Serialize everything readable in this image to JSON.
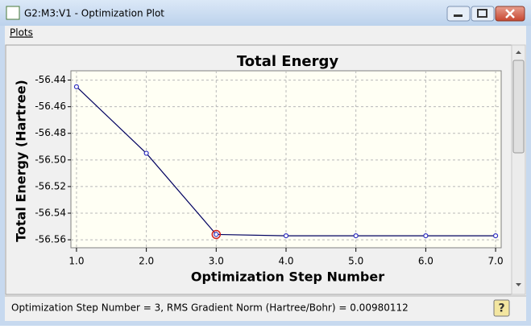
{
  "window": {
    "title": "G2:M3:V1 - Optimization Plot",
    "menu": [
      "Plots"
    ],
    "status": "Optimization Step Number = 3, RMS Gradient Norm (Hartree/Bohr) = 0.00980112"
  },
  "chart_data": {
    "type": "line",
    "title": "Total Energy",
    "x_label": "Optimization Step Number",
    "y_label": "Total Energy (Hartree)",
    "x": [
      1,
      2,
      3,
      4,
      5,
      6,
      7
    ],
    "values": [
      -56.445,
      -56.495,
      -56.556,
      -56.557,
      -56.557,
      -56.557,
      -56.557
    ],
    "color": "#000060",
    "marker_color": "#3030c0",
    "selected_x": 3,
    "selected_color": "#d02020",
    "xlim": [
      0.92,
      7.08
    ],
    "xticks": [
      {
        "value": 1,
        "label": "1.0"
      },
      {
        "value": 2,
        "label": "2.0"
      },
      {
        "value": 3,
        "label": "3.0"
      },
      {
        "value": 4,
        "label": "4.0"
      },
      {
        "value": 5,
        "label": "5.0"
      },
      {
        "value": 6,
        "label": "6.0"
      },
      {
        "value": 7,
        "label": "7.0"
      }
    ],
    "ylim": [
      -56.566,
      -56.433
    ],
    "yticks": [
      -56.56,
      -56.54,
      -56.52,
      {
        "value": -56.5,
        "label": "-56.50"
      },
      -56.48,
      -56.46,
      -56.44
    ],
    "grid": true
  }
}
